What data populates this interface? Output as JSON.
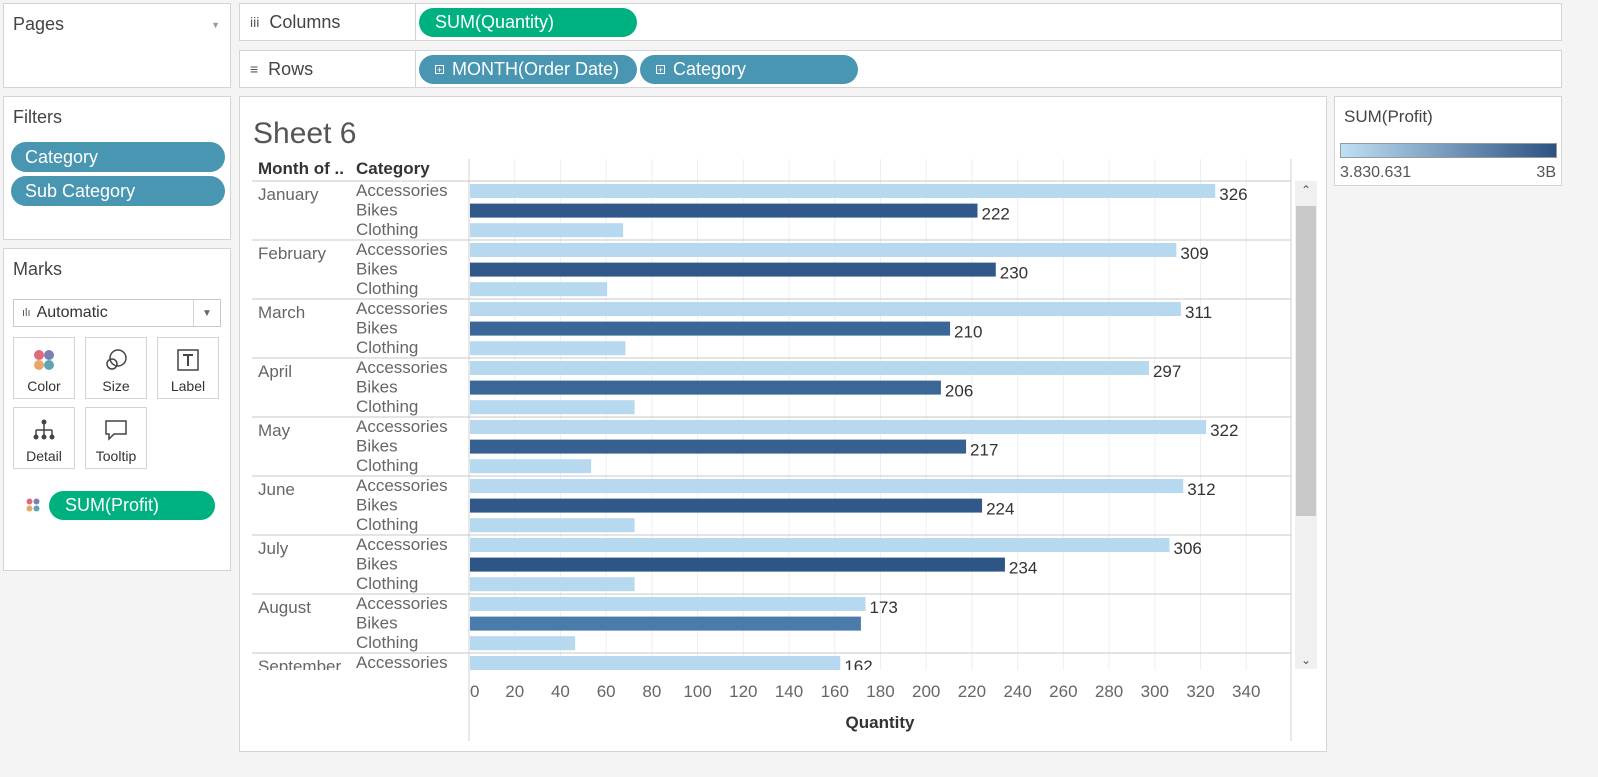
{
  "pages": {
    "title": "Pages"
  },
  "columns_shelf": {
    "label": "Columns",
    "pills": [
      {
        "text": "SUM(Quantity)"
      }
    ]
  },
  "rows_shelf": {
    "label": "Rows",
    "pills": [
      {
        "text": "MONTH(Order Date)"
      },
      {
        "text": "Category"
      }
    ]
  },
  "filters": {
    "title": "Filters",
    "pills": [
      {
        "text": "Category"
      },
      {
        "text": "Sub Category"
      }
    ]
  },
  "marks": {
    "title": "Marks",
    "mark_type": "Automatic",
    "buttons": [
      {
        "label": "Color"
      },
      {
        "label": "Size"
      },
      {
        "label": "Label"
      },
      {
        "label": "Detail"
      },
      {
        "label": "Tooltip"
      }
    ],
    "field_pill": "SUM(Profit)"
  },
  "legend": {
    "title": "SUM(Profit)",
    "min_label": "3.830.631",
    "max_label": "3B"
  },
  "sheet": {
    "title": "Sheet 6",
    "header_month": "Month of ..",
    "header_category": "Category",
    "xlabel": "Quantity"
  },
  "chart_data": {
    "type": "bar",
    "orientation": "horizontal",
    "xlabel": "Quantity",
    "xlim": [
      0,
      340
    ],
    "ticks": [
      0,
      20,
      40,
      60,
      80,
      100,
      120,
      140,
      160,
      180,
      200,
      220,
      240,
      260,
      280,
      300,
      320,
      340
    ],
    "months": [
      {
        "name": "January",
        "rows": [
          {
            "category": "Accessories",
            "value": 326,
            "label": "326",
            "color": "#b7d9ef"
          },
          {
            "category": "Bikes",
            "value": 222,
            "label": "222",
            "color": "#30598a"
          },
          {
            "category": "Clothing",
            "value": 67,
            "color": "#b7d9ef"
          }
        ]
      },
      {
        "name": "February",
        "rows": [
          {
            "category": "Accessories",
            "value": 309,
            "label": "309",
            "color": "#b7d9ef"
          },
          {
            "category": "Bikes",
            "value": 230,
            "label": "230",
            "color": "#30598a"
          },
          {
            "category": "Clothing",
            "value": 60,
            "color": "#b7d9ef"
          }
        ]
      },
      {
        "name": "March",
        "rows": [
          {
            "category": "Accessories",
            "value": 311,
            "label": "311",
            "color": "#b7d9ef"
          },
          {
            "category": "Bikes",
            "value": 210,
            "label": "210",
            "color": "#3a6798"
          },
          {
            "category": "Clothing",
            "value": 68,
            "color": "#b7d9ef"
          }
        ]
      },
      {
        "name": "April",
        "rows": [
          {
            "category": "Accessories",
            "value": 297,
            "label": "297",
            "color": "#b7d9ef"
          },
          {
            "category": "Bikes",
            "value": 206,
            "label": "206",
            "color": "#3a6798"
          },
          {
            "category": "Clothing",
            "value": 72,
            "color": "#b7d9ef"
          }
        ]
      },
      {
        "name": "May",
        "rows": [
          {
            "category": "Accessories",
            "value": 322,
            "label": "322",
            "color": "#b7d9ef"
          },
          {
            "category": "Bikes",
            "value": 217,
            "label": "217",
            "color": "#35608f"
          },
          {
            "category": "Clothing",
            "value": 53,
            "color": "#b7d9ef"
          }
        ]
      },
      {
        "name": "June",
        "rows": [
          {
            "category": "Accessories",
            "value": 312,
            "label": "312",
            "color": "#b7d9ef"
          },
          {
            "category": "Bikes",
            "value": 224,
            "label": "224",
            "color": "#30598a"
          },
          {
            "category": "Clothing",
            "value": 72,
            "color": "#b7d9ef"
          }
        ]
      },
      {
        "name": "July",
        "rows": [
          {
            "category": "Accessories",
            "value": 306,
            "label": "306",
            "color": "#b7d9ef"
          },
          {
            "category": "Bikes",
            "value": 234,
            "label": "234",
            "color": "#2d5586"
          },
          {
            "category": "Clothing",
            "value": 72,
            "color": "#b7d9ef"
          }
        ]
      },
      {
        "name": "August",
        "rows": [
          {
            "category": "Accessories",
            "value": 173,
            "label": "173",
            "color": "#b7d9ef"
          },
          {
            "category": "Bikes",
            "value": 171,
            "color": "#4a7bab"
          },
          {
            "category": "Clothing",
            "value": 46,
            "color": "#b7d9ef"
          }
        ]
      },
      {
        "name": "September",
        "rows": [
          {
            "category": "Accessories",
            "value": 162,
            "label": "162",
            "color": "#b7d9ef"
          }
        ]
      }
    ]
  }
}
